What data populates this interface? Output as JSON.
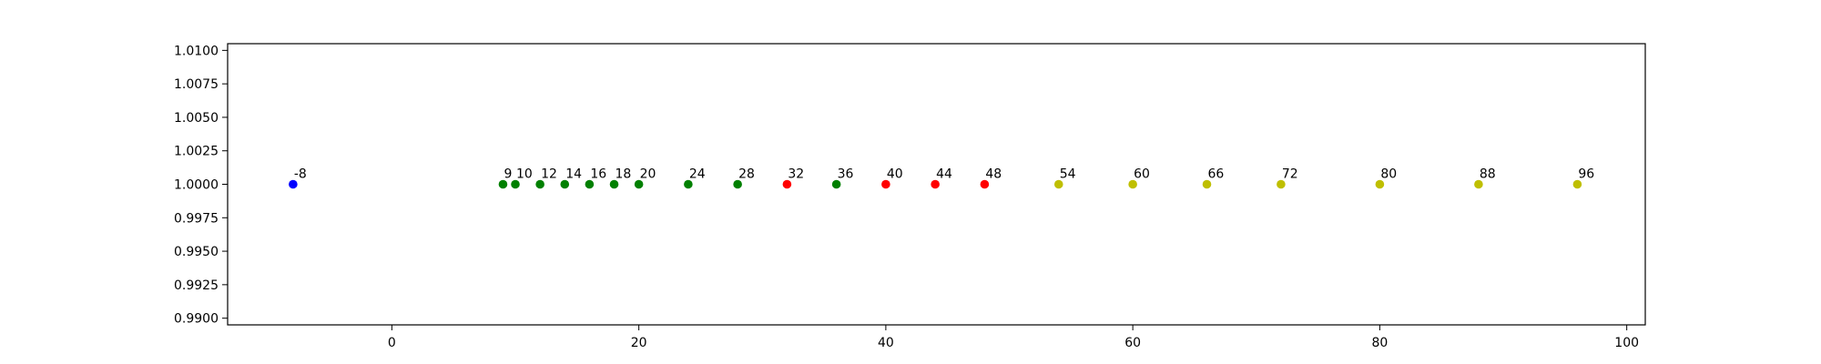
{
  "chart_data": {
    "type": "scatter",
    "title": "",
    "xlabel": "",
    "ylabel": "",
    "xlim": [
      -13.3,
      101.5
    ],
    "ylim": [
      0.9895,
      1.0105
    ],
    "xticks": [
      0,
      20,
      40,
      60,
      80,
      100
    ],
    "xtick_labels": [
      "0",
      "20",
      "40",
      "60",
      "80",
      "100"
    ],
    "yticks": [
      0.99,
      0.9925,
      0.995,
      0.9975,
      1.0,
      1.0025,
      1.005,
      1.0075,
      1.01
    ],
    "ytick_labels": [
      "0.9900",
      "0.9925",
      "0.9950",
      "0.9975",
      "1.0000",
      "1.0025",
      "1.0050",
      "1.0075",
      "1.0100"
    ],
    "grid": false,
    "legend": "none",
    "colors": {
      "blue": "#0000ff",
      "green": "#008000",
      "red": "#ff0000",
      "yellow": "#bfbf00"
    },
    "points": [
      {
        "x": -8,
        "y": 1.0,
        "label": "-8",
        "color": "blue"
      },
      {
        "x": 9,
        "y": 1.0,
        "label": "9",
        "color": "green"
      },
      {
        "x": 10,
        "y": 1.0,
        "label": "10",
        "color": "green"
      },
      {
        "x": 12,
        "y": 1.0,
        "label": "12",
        "color": "green"
      },
      {
        "x": 14,
        "y": 1.0,
        "label": "14",
        "color": "green"
      },
      {
        "x": 16,
        "y": 1.0,
        "label": "16",
        "color": "green"
      },
      {
        "x": 18,
        "y": 1.0,
        "label": "18",
        "color": "green"
      },
      {
        "x": 20,
        "y": 1.0,
        "label": "20",
        "color": "green"
      },
      {
        "x": 24,
        "y": 1.0,
        "label": "24",
        "color": "green"
      },
      {
        "x": 28,
        "y": 1.0,
        "label": "28",
        "color": "green"
      },
      {
        "x": 32,
        "y": 1.0,
        "label": "32",
        "color": "red"
      },
      {
        "x": 36,
        "y": 1.0,
        "label": "36",
        "color": "green"
      },
      {
        "x": 40,
        "y": 1.0,
        "label": "40",
        "color": "red"
      },
      {
        "x": 44,
        "y": 1.0,
        "label": "44",
        "color": "red"
      },
      {
        "x": 48,
        "y": 1.0,
        "label": "48",
        "color": "red"
      },
      {
        "x": 54,
        "y": 1.0,
        "label": "54",
        "color": "yellow"
      },
      {
        "x": 60,
        "y": 1.0,
        "label": "60",
        "color": "yellow"
      },
      {
        "x": 66,
        "y": 1.0,
        "label": "66",
        "color": "yellow"
      },
      {
        "x": 72,
        "y": 1.0,
        "label": "72",
        "color": "yellow"
      },
      {
        "x": 80,
        "y": 1.0,
        "label": "80",
        "color": "yellow"
      },
      {
        "x": 88,
        "y": 1.0,
        "label": "88",
        "color": "yellow"
      },
      {
        "x": 96,
        "y": 1.0,
        "label": "96",
        "color": "yellow"
      }
    ]
  }
}
